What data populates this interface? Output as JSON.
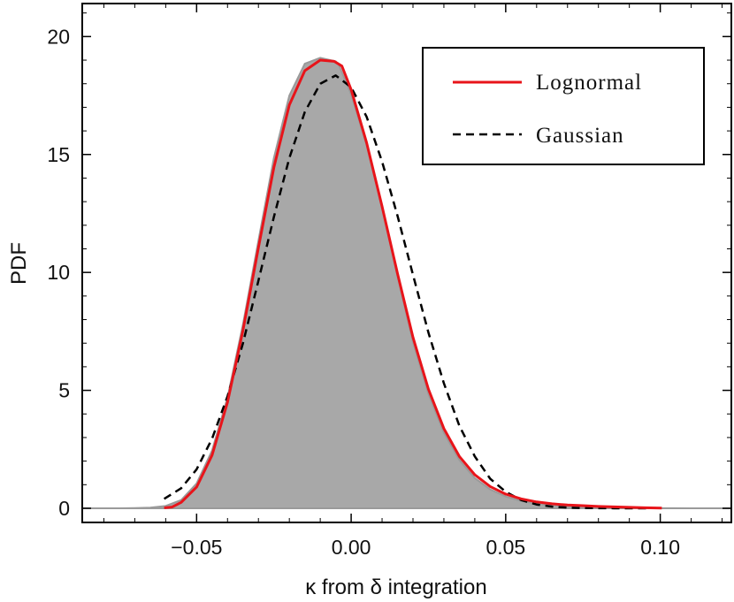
{
  "chart_data": {
    "type": "area",
    "title": "",
    "xlabel": "κ from δ integration",
    "ylabel": "PDF",
    "xlim": [
      -0.087,
      0.123
    ],
    "ylim": [
      -0.6,
      21.4
    ],
    "x_ticks": [
      -0.05,
      0.0,
      0.05,
      0.1
    ],
    "x_tick_labels": [
      "−0.05",
      "0.00",
      "0.05",
      "0.10"
    ],
    "y_ticks": [
      0,
      5,
      10,
      15,
      20
    ],
    "y_tick_labels": [
      "0",
      "5",
      "10",
      "15",
      "20"
    ],
    "grid": false,
    "legend_position": "top-right",
    "colors": {
      "histogram": "#a8a8a8",
      "histogram_edge": "#9a9a9a",
      "lognormal": "#e8141a",
      "gaussian": "#000000"
    },
    "legend": [
      {
        "label": "Lognormal",
        "style": "solid",
        "color": "#e8141a"
      },
      {
        "label": "Gaussian",
        "style": "dashed",
        "color": "#000000"
      }
    ],
    "series": [
      {
        "type": "area",
        "x": [
          -0.087,
          -0.08,
          -0.075,
          -0.07,
          -0.065,
          -0.06,
          -0.055,
          -0.05,
          -0.045,
          -0.04,
          -0.035,
          -0.03,
          -0.025,
          -0.02,
          -0.015,
          -0.01,
          -0.005,
          -0.004,
          0.0,
          0.005,
          0.01,
          0.015,
          0.02,
          0.025,
          0.03,
          0.035,
          0.04,
          0.045,
          0.05,
          0.055,
          0.06,
          0.065,
          0.07,
          0.075,
          0.08,
          0.09,
          0.1,
          0.11,
          0.123
        ],
        "y": [
          0,
          0,
          0,
          0.01,
          0.03,
          0.1,
          0.35,
          1.05,
          2.45,
          4.7,
          7.8,
          11.35,
          14.85,
          17.5,
          18.85,
          19.1,
          18.95,
          18.8,
          17.55,
          15.4,
          12.75,
          9.85,
          7.05,
          4.85,
          3.2,
          2.05,
          1.28,
          0.8,
          0.5,
          0.31,
          0.19,
          0.12,
          0.07,
          0.05,
          0.03,
          0.01,
          0.005,
          0,
          0
        ]
      },
      {
        "name": "Lognormal",
        "type": "line",
        "x": [
          -0.0605,
          -0.058,
          -0.055,
          -0.05,
          -0.045,
          -0.04,
          -0.035,
          -0.03,
          -0.025,
          -0.02,
          -0.015,
          -0.01,
          -0.0055,
          -0.003,
          0.0,
          0.005,
          0.01,
          0.015,
          0.02,
          0.025,
          0.03,
          0.035,
          0.04,
          0.045,
          0.05,
          0.055,
          0.06,
          0.065,
          0.07,
          0.075,
          0.08,
          0.085,
          0.09,
          0.095,
          0.1005
        ],
        "y": [
          0.02,
          0.05,
          0.25,
          0.9,
          2.25,
          4.5,
          7.55,
          11.05,
          14.45,
          17.1,
          18.55,
          19.0,
          18.95,
          18.75,
          17.75,
          15.5,
          12.8,
          9.95,
          7.25,
          5.05,
          3.38,
          2.2,
          1.42,
          0.92,
          0.6,
          0.4,
          0.27,
          0.19,
          0.14,
          0.11,
          0.08,
          0.06,
          0.04,
          0.025,
          0.01
        ]
      },
      {
        "name": "Gaussian",
        "type": "line",
        "x": [
          -0.0605,
          -0.055,
          -0.05,
          -0.045,
          -0.04,
          -0.035,
          -0.03,
          -0.025,
          -0.02,
          -0.015,
          -0.01,
          -0.005,
          0.0,
          0.005,
          0.01,
          0.015,
          0.02,
          0.025,
          0.03,
          0.035,
          0.04,
          0.045,
          0.05,
          0.055,
          0.06,
          0.065,
          0.07,
          0.075,
          0.08,
          0.085,
          0.09,
          0.0955
        ],
        "y": [
          0.4,
          0.85,
          1.65,
          2.95,
          4.75,
          7.0,
          9.65,
          12.35,
          14.85,
          16.8,
          18.0,
          18.35,
          17.85,
          16.6,
          14.7,
          12.4,
          9.9,
          7.45,
          5.3,
          3.5,
          2.2,
          1.25,
          0.7,
          0.35,
          0.16,
          0.07,
          0.03,
          0.01,
          0.005,
          0.002,
          0.001,
          0
        ]
      }
    ]
  }
}
